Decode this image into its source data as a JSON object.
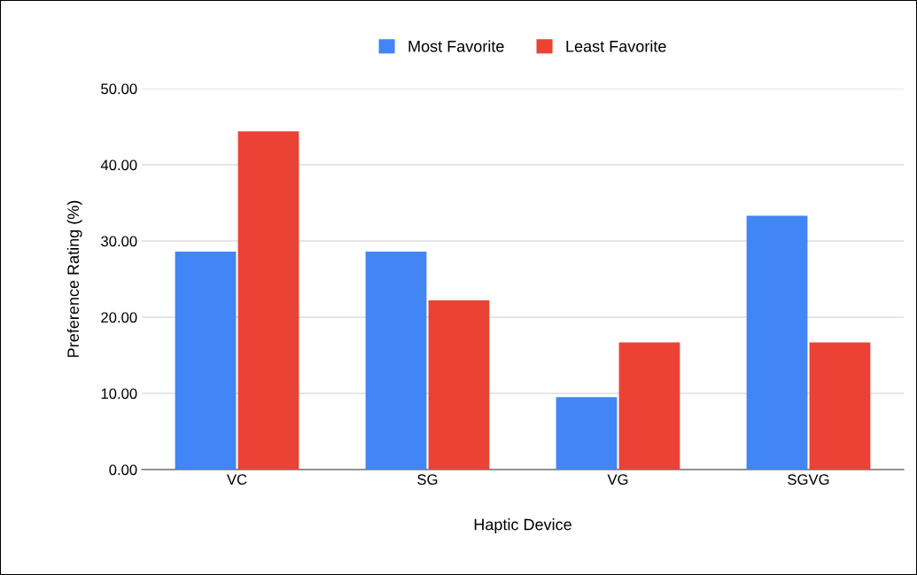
{
  "chart_data": {
    "type": "bar",
    "xlabel": "Haptic Device",
    "ylabel": "Preference Rating (%)",
    "categories": [
      "VC",
      "SG",
      "VG",
      "SGVG"
    ],
    "series": [
      {
        "name": "Most Favorite",
        "color": "#4285f4",
        "values": [
          28.6,
          28.6,
          9.5,
          33.3
        ]
      },
      {
        "name": "Least Favorite",
        "color": "#ea4335",
        "values": [
          44.4,
          22.2,
          16.7,
          16.7
        ]
      }
    ],
    "ylim": [
      0,
      50
    ],
    "yticks": [
      {
        "value": 0,
        "label": "0.00"
      },
      {
        "value": 10,
        "label": "10.00"
      },
      {
        "value": 20,
        "label": "20.00"
      },
      {
        "value": 30,
        "label": "30.00"
      },
      {
        "value": 40,
        "label": "40.00"
      },
      {
        "value": 50,
        "label": "50.00"
      }
    ],
    "grid": "y",
    "legend": "top"
  }
}
